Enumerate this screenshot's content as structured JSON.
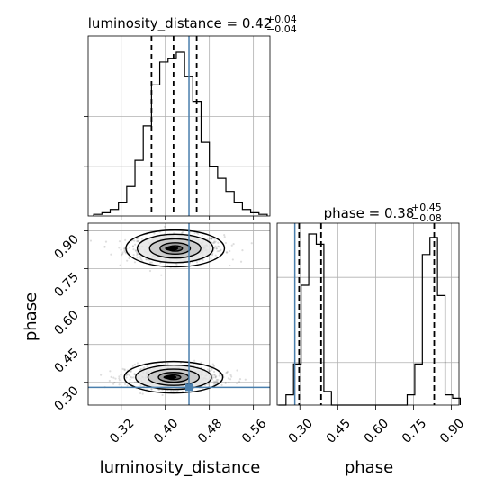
{
  "chart_data": [
    {
      "type": "histogram",
      "panel": "luminosity_distance",
      "title": {
        "param": "luminosity_distance",
        "median": "0.42",
        "plus": "+0.04",
        "minus": "−0.04"
      },
      "xlim": [
        0.26,
        0.59
      ],
      "bins": [
        0.27,
        0.285,
        0.3,
        0.315,
        0.33,
        0.345,
        0.36,
        0.375,
        0.39,
        0.405,
        0.42,
        0.435,
        0.45,
        0.465,
        0.48,
        0.495,
        0.51,
        0.525,
        0.54,
        0.555,
        0.57,
        0.585
      ],
      "values": [
        0.01,
        0.02,
        0.04,
        0.08,
        0.18,
        0.34,
        0.55,
        0.8,
        0.94,
        0.96,
        1.0,
        0.85,
        0.7,
        0.45,
        0.3,
        0.23,
        0.15,
        0.08,
        0.04,
        0.02,
        0.01
      ],
      "quantiles": [
        0.375,
        0.415,
        0.457
      ],
      "truth": 0.443
    },
    {
      "type": "scatter",
      "panel": "2d",
      "xlabel": "luminosity_distance",
      "ylabel": "phase",
      "xlim": [
        0.26,
        0.59
      ],
      "ylim": [
        0.21,
        0.93
      ],
      "xticks": [
        "0.32",
        "0.40",
        "0.48",
        "0.56"
      ],
      "yticks": [
        "0.30",
        "0.45",
        "0.60",
        "0.75",
        "0.90"
      ],
      "truth": [
        0.443,
        0.28
      ],
      "modes": [
        {
          "center": [
            0.418,
            0.83
          ],
          "spread": [
            0.04,
            0.035
          ]
        },
        {
          "center": [
            0.415,
            0.32
          ],
          "spread": [
            0.04,
            0.03
          ]
        }
      ]
    },
    {
      "type": "histogram",
      "panel": "phase",
      "title": {
        "param": "phase",
        "median": "0.38",
        "plus": "+0.45",
        "minus": "−0.08"
      },
      "xlabel": "phase",
      "xlim": [
        0.21,
        0.93
      ],
      "xticks": [
        "0.30",
        "0.45",
        "0.60",
        "0.75",
        "0.90"
      ],
      "bins": [
        0.215,
        0.245,
        0.275,
        0.305,
        0.335,
        0.365,
        0.395,
        0.425,
        0.455,
        0.485,
        0.515,
        0.545,
        0.575,
        0.605,
        0.635,
        0.665,
        0.695,
        0.725,
        0.755,
        0.785,
        0.815,
        0.845,
        0.875,
        0.905,
        0.935
      ],
      "values": [
        0.0,
        0.03,
        0.12,
        0.35,
        0.5,
        0.47,
        0.04,
        0,
        0,
        0,
        0,
        0,
        0,
        0,
        0,
        0,
        0,
        0.03,
        0.12,
        0.44,
        0.49,
        0.32,
        0.03,
        0.02
      ],
      "quantiles": [
        0.297,
        0.384,
        0.832
      ],
      "truth": 0.28
    }
  ]
}
